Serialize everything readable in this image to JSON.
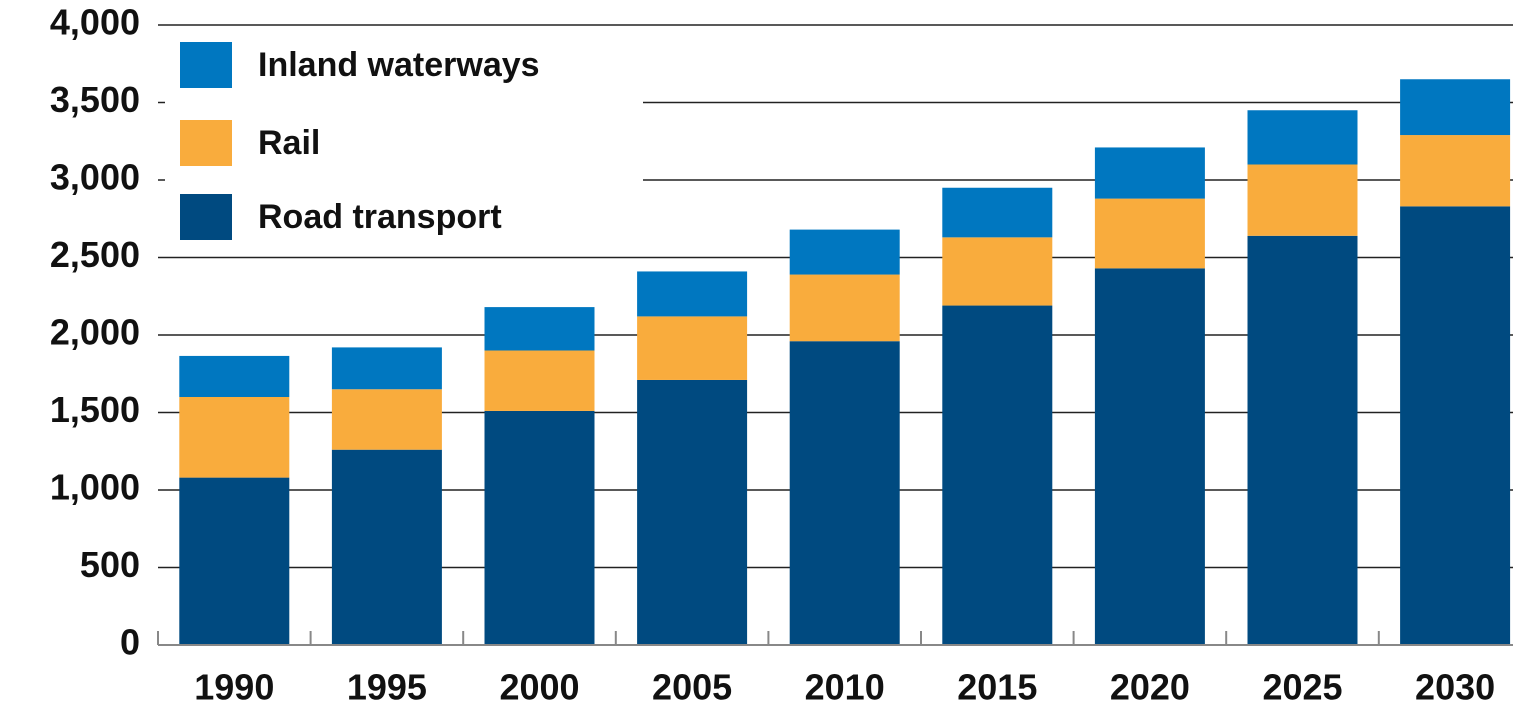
{
  "chart_data": {
    "type": "stacked_bar",
    "categories": [
      "1990",
      "1995",
      "2000",
      "2005",
      "2010",
      "2015",
      "2020",
      "2025",
      "2030"
    ],
    "series": [
      {
        "name": "Road transport",
        "color": "#004a80",
        "values": [
          1080,
          1260,
          1510,
          1710,
          1960,
          2190,
          2430,
          2640,
          2830
        ]
      },
      {
        "name": "Rail",
        "color": "#f9ac3d",
        "values": [
          520,
          390,
          390,
          410,
          430,
          440,
          450,
          460,
          460
        ]
      },
      {
        "name": "Inland waterways",
        "color": "#0077c0",
        "values": [
          265,
          270,
          280,
          290,
          290,
          320,
          330,
          350,
          360
        ]
      }
    ],
    "ylim": [
      0,
      4000
    ],
    "yticks": [
      0,
      500,
      {
        "value": 1000,
        "label": "1,000"
      },
      {
        "value": 1500,
        "label": "1,500"
      },
      {
        "value": 2000,
        "label": "2,000"
      },
      {
        "value": 2500,
        "label": "2,500"
      },
      {
        "value": 3000,
        "label": "3,000"
      },
      {
        "value": 3500,
        "label": "3,500"
      },
      {
        "value": 4000,
        "label": "4,000"
      }
    ],
    "grid": true
  }
}
